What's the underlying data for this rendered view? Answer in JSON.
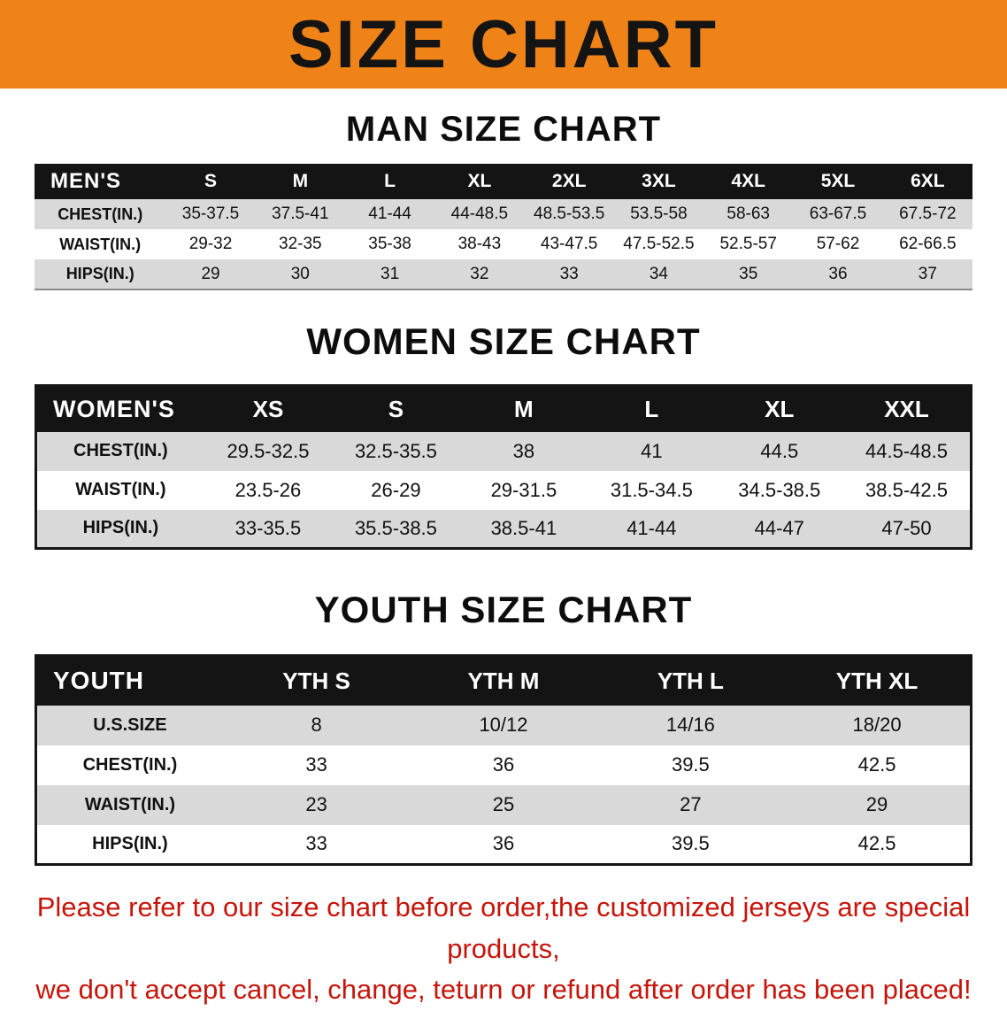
{
  "colors": {
    "banner_bg": "#f08318",
    "banner_text": "#141414",
    "table_header_bg": "#141414",
    "table_header_text": "#ffffff",
    "row_stripe": "#d9d9d9",
    "footer_text": "#c6150b"
  },
  "banner": {
    "title": "SIZE CHART"
  },
  "men": {
    "heading": "MAN SIZE CHART",
    "table": {
      "corner": "MEN'S",
      "headers": [
        "S",
        "M",
        "L",
        "XL",
        "2XL",
        "3XL",
        "4XL",
        "5XL",
        "6XL"
      ],
      "rows": [
        {
          "label": "CHEST(IN.)",
          "values": [
            "35-37.5",
            "37.5-41",
            "41-44",
            "44-48.5",
            "48.5-53.5",
            "53.5-58",
            "58-63",
            "63-67.5",
            "67.5-72"
          ]
        },
        {
          "label": "WAIST(IN.)",
          "values": [
            "29-32",
            "32-35",
            "35-38",
            "38-43",
            "43-47.5",
            "47.5-52.5",
            "52.5-57",
            "57-62",
            "62-66.5"
          ]
        },
        {
          "label": "HIPS(IN.)",
          "values": [
            "29",
            "30",
            "31",
            "32",
            "33",
            "34",
            "35",
            "36",
            "37"
          ]
        }
      ]
    }
  },
  "women": {
    "heading": "WOMEN SIZE CHART",
    "table": {
      "corner": "WOMEN'S",
      "headers": [
        "XS",
        "S",
        "M",
        "L",
        "XL",
        "XXL"
      ],
      "rows": [
        {
          "label": "CHEST(IN.)",
          "values": [
            "29.5-32.5",
            "32.5-35.5",
            "38",
            "41",
            "44.5",
            "44.5-48.5"
          ]
        },
        {
          "label": "WAIST(IN.)",
          "values": [
            "23.5-26",
            "26-29",
            "29-31.5",
            "31.5-34.5",
            "34.5-38.5",
            "38.5-42.5"
          ]
        },
        {
          "label": "HIPS(IN.)",
          "values": [
            "33-35.5",
            "35.5-38.5",
            "38.5-41",
            "41-44",
            "44-47",
            "47-50"
          ]
        }
      ]
    }
  },
  "youth": {
    "heading": "YOUTH SIZE CHART",
    "table": {
      "corner": "YOUTH",
      "headers": [
        "YTH S",
        "YTH M",
        "YTH L",
        "YTH XL"
      ],
      "rows": [
        {
          "label": "U.S.SIZE",
          "values": [
            "8",
            "10/12",
            "14/16",
            "18/20"
          ]
        },
        {
          "label": "CHEST(IN.)",
          "values": [
            "33",
            "36",
            "39.5",
            "42.5"
          ]
        },
        {
          "label": "WAIST(IN.)",
          "values": [
            "23",
            "25",
            "27",
            "29"
          ]
        },
        {
          "label": "HIPS(IN.)",
          "values": [
            "33",
            "36",
            "39.5",
            "42.5"
          ]
        }
      ]
    }
  },
  "footer": {
    "line1": "Please refer to our size chart before order,the customized jerseys are special products,",
    "line2": "we don't accept cancel, change, teturn or refund after order has been placed!"
  }
}
